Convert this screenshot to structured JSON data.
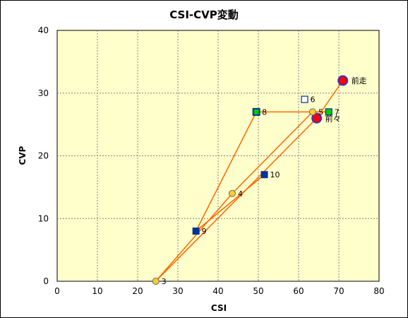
{
  "chart_data": {
    "type": "scatter",
    "title": "CSI-CVP変動",
    "xlabel": "CSI",
    "ylabel": "CVP",
    "xlim": [
      0,
      80
    ],
    "ylim": [
      0,
      40
    ],
    "x_ticks": [
      "0",
      "10",
      "20",
      "30",
      "40",
      "50",
      "60",
      "70",
      "80"
    ],
    "y_ticks": [
      "0",
      "10",
      "20",
      "30",
      "40"
    ],
    "x_tick_values": [
      0,
      10,
      20,
      30,
      40,
      50,
      60,
      70,
      80
    ],
    "y_tick_values": [
      0,
      10,
      20,
      30,
      40
    ],
    "grid": true,
    "legend": "none",
    "colors": {
      "plot_background": "#ffffcc",
      "grid": "#808080",
      "line": "#ff6600",
      "circle_fill": "#ffcc33",
      "circle_stroke": "#666666",
      "latest_fill": "#ff0000",
      "latest_stroke": "#3333cc",
      "square_navy": "#003399",
      "square_green": "#00cc00",
      "square_open": "#ffffff"
    },
    "points": [
      {
        "label": "前走",
        "x": 71.0,
        "y": 32.0,
        "marker": "circle-large-red"
      },
      {
        "label": "前々",
        "x": 64.5,
        "y": 26.0,
        "marker": "circle-large-red"
      },
      {
        "label": "3",
        "x": 24.5,
        "y": 0.0,
        "marker": "circle"
      },
      {
        "label": "4",
        "x": 43.5,
        "y": 14.0,
        "marker": "circle"
      },
      {
        "label": "5",
        "x": 63.5,
        "y": 27.0,
        "marker": "circle"
      },
      {
        "label": "6",
        "x": 61.5,
        "y": 29.0,
        "marker": "square-open"
      },
      {
        "label": "7",
        "x": 67.5,
        "y": 27.0,
        "marker": "square-green"
      },
      {
        "label": "8",
        "x": 49.5,
        "y": 27.0,
        "marker": "square-navy-green"
      },
      {
        "label": "9",
        "x": 34.5,
        "y": 8.0,
        "marker": "square-navy"
      },
      {
        "label": "10",
        "x": 51.5,
        "y": 17.0,
        "marker": "square-navy"
      }
    ],
    "line_sequence": [
      "前走",
      "前々",
      "3",
      "4",
      "5",
      "7",
      "8",
      "9",
      "10"
    ]
  }
}
